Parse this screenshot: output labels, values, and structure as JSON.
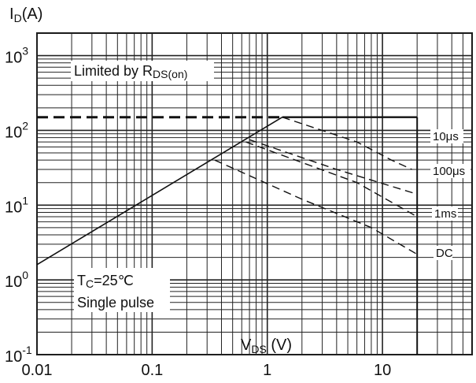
{
  "chart_data": {
    "type": "line",
    "title": "",
    "ylabel": {
      "main": "I",
      "sub": "D",
      "unit": "(A)"
    },
    "xlabel": {
      "main": "V",
      "sub": "DS",
      "unit": " (V)"
    },
    "x_scale": "log",
    "y_scale": "log",
    "xlim": [
      0.01,
      60
    ],
    "ylim": [
      0.1,
      2000
    ],
    "grid": true,
    "x_ticks": [
      {
        "value": 0.01,
        "label": "0.01"
      },
      {
        "value": 0.1,
        "label": "0.1"
      },
      {
        "value": 1,
        "label": "1"
      },
      {
        "value": 10,
        "label": "10"
      }
    ],
    "y_ticks": [
      {
        "value": 0.1,
        "base": "10",
        "exp": "-1"
      },
      {
        "value": 1,
        "base": "10",
        "exp": "0"
      },
      {
        "value": 10,
        "base": "10",
        "exp": "1"
      },
      {
        "value": 100,
        "base": "10",
        "exp": "2"
      },
      {
        "value": 1000,
        "base": "10",
        "exp": "3"
      }
    ],
    "limit_line": {
      "x": [
        0.01,
        1.35
      ],
      "y": [
        150,
        150
      ],
      "style": "dashed"
    },
    "rds_line": {
      "x": [
        0.01,
        1.35
      ],
      "y": [
        1.6,
        150
      ],
      "style": "solid"
    },
    "current_limit": {
      "x": [
        1.35,
        20
      ],
      "y": [
        150,
        150
      ],
      "style": "solid"
    },
    "vdss_limit": {
      "x": [
        20,
        20
      ],
      "y": [
        0.1,
        150
      ],
      "style": "solid"
    },
    "series": [
      {
        "name": "10μs",
        "x": [
          1.35,
          6,
          12,
          18
        ],
        "y": [
          150,
          70,
          40,
          30
        ],
        "style": "dashed"
      },
      {
        "name": "100μs",
        "x": [
          0.7,
          4,
          20
        ],
        "y": [
          75,
          30,
          14
        ],
        "style": "dashed"
      },
      {
        "name": "1ms",
        "x": [
          0.65,
          6,
          20
        ],
        "y": [
          70,
          20,
          7
        ],
        "style": "dashed"
      },
      {
        "name": "DC",
        "x": [
          0.35,
          2,
          8,
          20
        ],
        "y": [
          40,
          12,
          5,
          2.2
        ],
        "style": "dashed"
      }
    ],
    "annotations": {
      "rds_label": {
        "main": "Limited by R",
        "sub": "DS(on)"
      },
      "tc_label": {
        "main": "T",
        "sub": "C",
        "rest": "=25℃"
      },
      "pulse_label": "Single pulse"
    }
  }
}
